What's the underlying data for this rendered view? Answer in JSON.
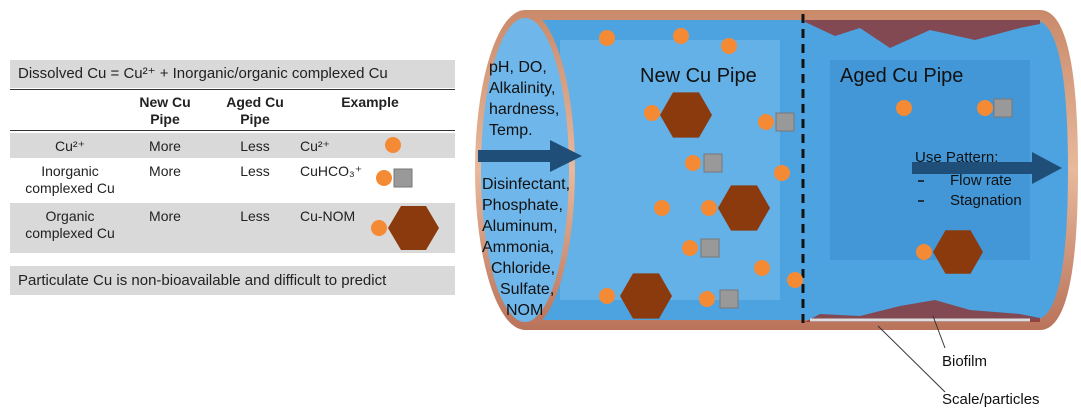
{
  "table": {
    "title": "Dissolved Cu = Cu²⁺ + Inorganic/organic complexed Cu",
    "columns": [
      "New Cu Pipe",
      "Aged Cu Pipe",
      "Example"
    ],
    "rows": [
      [
        "Cu²⁺",
        "More",
        "Less",
        "Cu²⁺"
      ],
      [
        "Inorganic complexed Cu",
        "More",
        "Less",
        "CuHCO₃⁺"
      ],
      [
        "Organic complexed Cu",
        "More",
        "Less",
        "Cu-NOM"
      ]
    ],
    "footer": "Particulate Cu is non-bioavailable and difficult to predict"
  },
  "pipe": {
    "water_quality": [
      "pH, DO,",
      "Alkalinity,",
      "hardness,",
      "Temp."
    ],
    "constituents": [
      "Disinfectant,",
      "Phosphate,",
      "Aluminum,",
      "Ammonia,",
      "Chloride,",
      "Sulfate,",
      "NOM"
    ],
    "new_label": "New Cu Pipe",
    "aged_label": "Aged Cu Pipe",
    "use_pattern": {
      "title": "Use Pattern:",
      "items": [
        "Flow rate",
        "Stagnation"
      ]
    },
    "callouts": [
      "Biofilm",
      "Scale/particles"
    ]
  }
}
